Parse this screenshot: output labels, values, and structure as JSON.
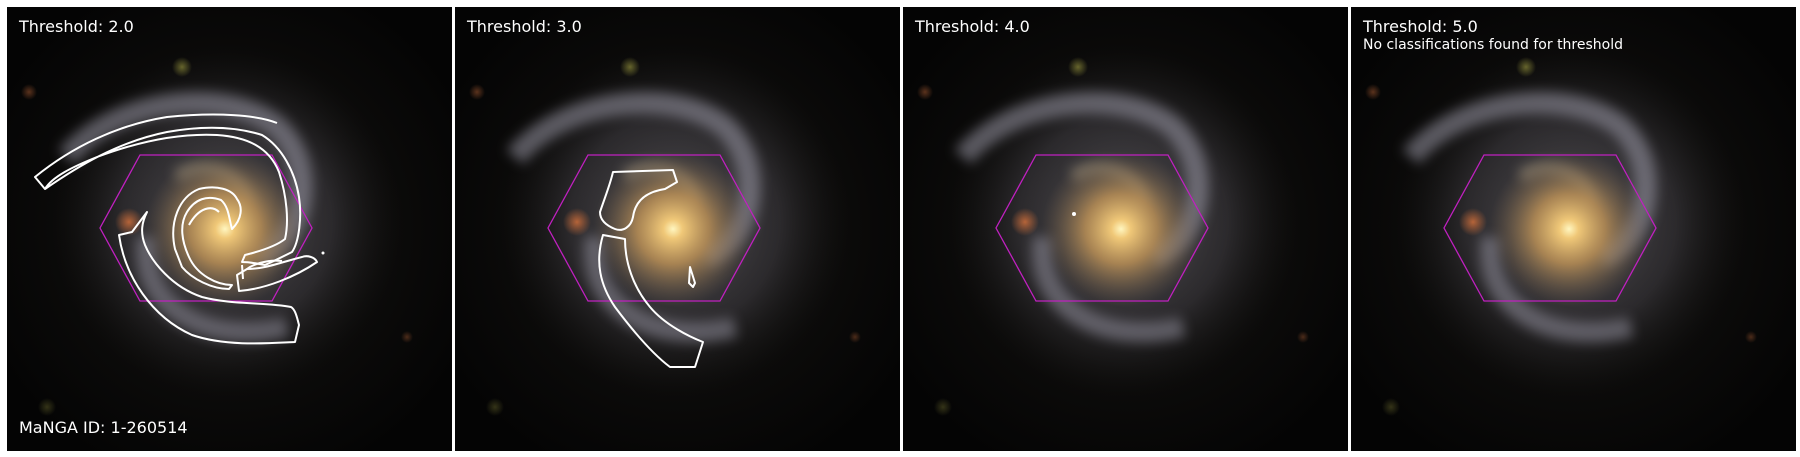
{
  "panels": [
    {
      "title": "Threshold: 2.0",
      "note": "",
      "footer": "MaNGA ID: 1-260514"
    },
    {
      "title": "Threshold: 3.0",
      "note": "",
      "footer": ""
    },
    {
      "title": "Threshold: 4.0",
      "note": "",
      "footer": ""
    },
    {
      "title": "Threshold: 5.0",
      "note": "No classifications found for threshold",
      "footer": ""
    }
  ],
  "colors": {
    "hexagon": "#c020c0",
    "contour": "#ffffff",
    "core": "#fff3b0",
    "bulge": "#c89a50",
    "disk": "#8a8a96",
    "background": "#050505"
  }
}
